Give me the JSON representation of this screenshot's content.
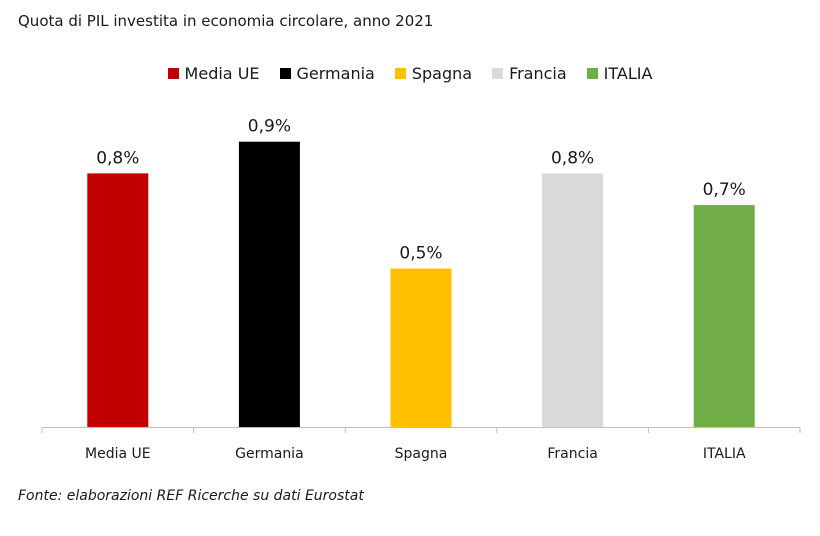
{
  "chart_data": {
    "type": "bar",
    "title": "Quota di PIL investita in economia circolare, anno 2021",
    "categories": [
      "Media UE",
      "Germania",
      "Spagna",
      "Francia",
      "ITALIA"
    ],
    "values": [
      0.8,
      0.9,
      0.5,
      0.8,
      0.7
    ],
    "data_labels": [
      "0,8%",
      "0,9%",
      "0,5%",
      "0,8%",
      "0,7%"
    ],
    "colors": [
      "#c00000",
      "#000000",
      "#ffc000",
      "#d9d9d9",
      "#70ad47"
    ],
    "legend": [
      "Media UE",
      "Germania",
      "Spagna",
      "Francia",
      "ITALIA"
    ],
    "legend_position": "top",
    "ylim": [
      0,
      1.0
    ],
    "grid": false,
    "xlabel": "",
    "ylabel": ""
  },
  "source": "Fonte: elaborazioni REF Ricerche su dati Eurostat"
}
